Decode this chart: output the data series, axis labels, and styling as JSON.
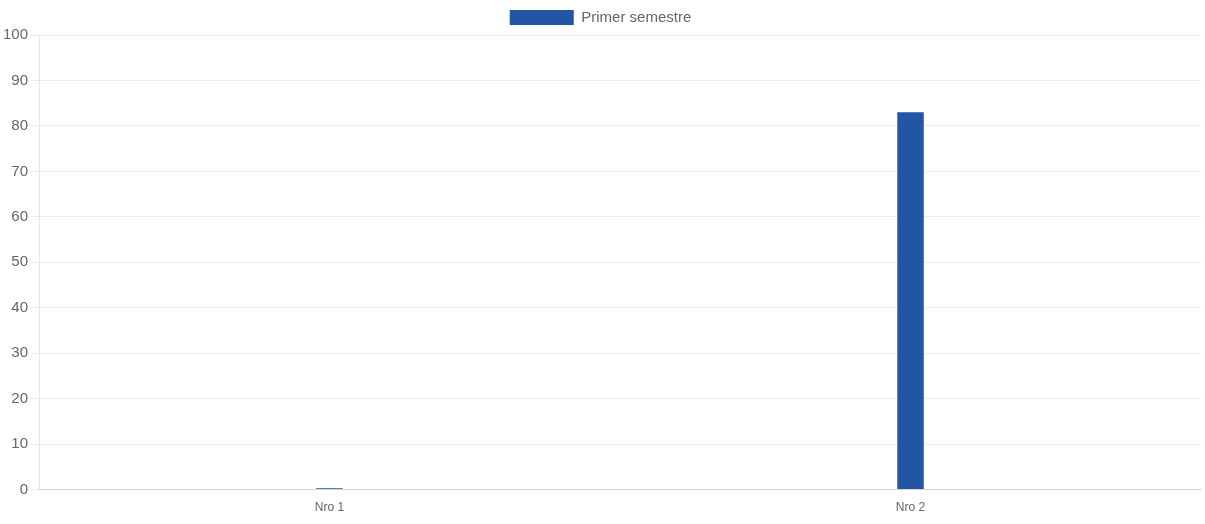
{
  "chart_data": {
    "type": "bar",
    "categories": [
      "Nro 1",
      "Nro 2"
    ],
    "series": [
      {
        "name": "Primer semestre",
        "color": "#2255a4",
        "values": [
          0.3,
          83
        ]
      }
    ],
    "ylim": [
      0,
      100
    ],
    "yticks": [
      0,
      10,
      20,
      30,
      40,
      50,
      60,
      70,
      80,
      90,
      100
    ],
    "grid": "y",
    "legend": "top"
  }
}
